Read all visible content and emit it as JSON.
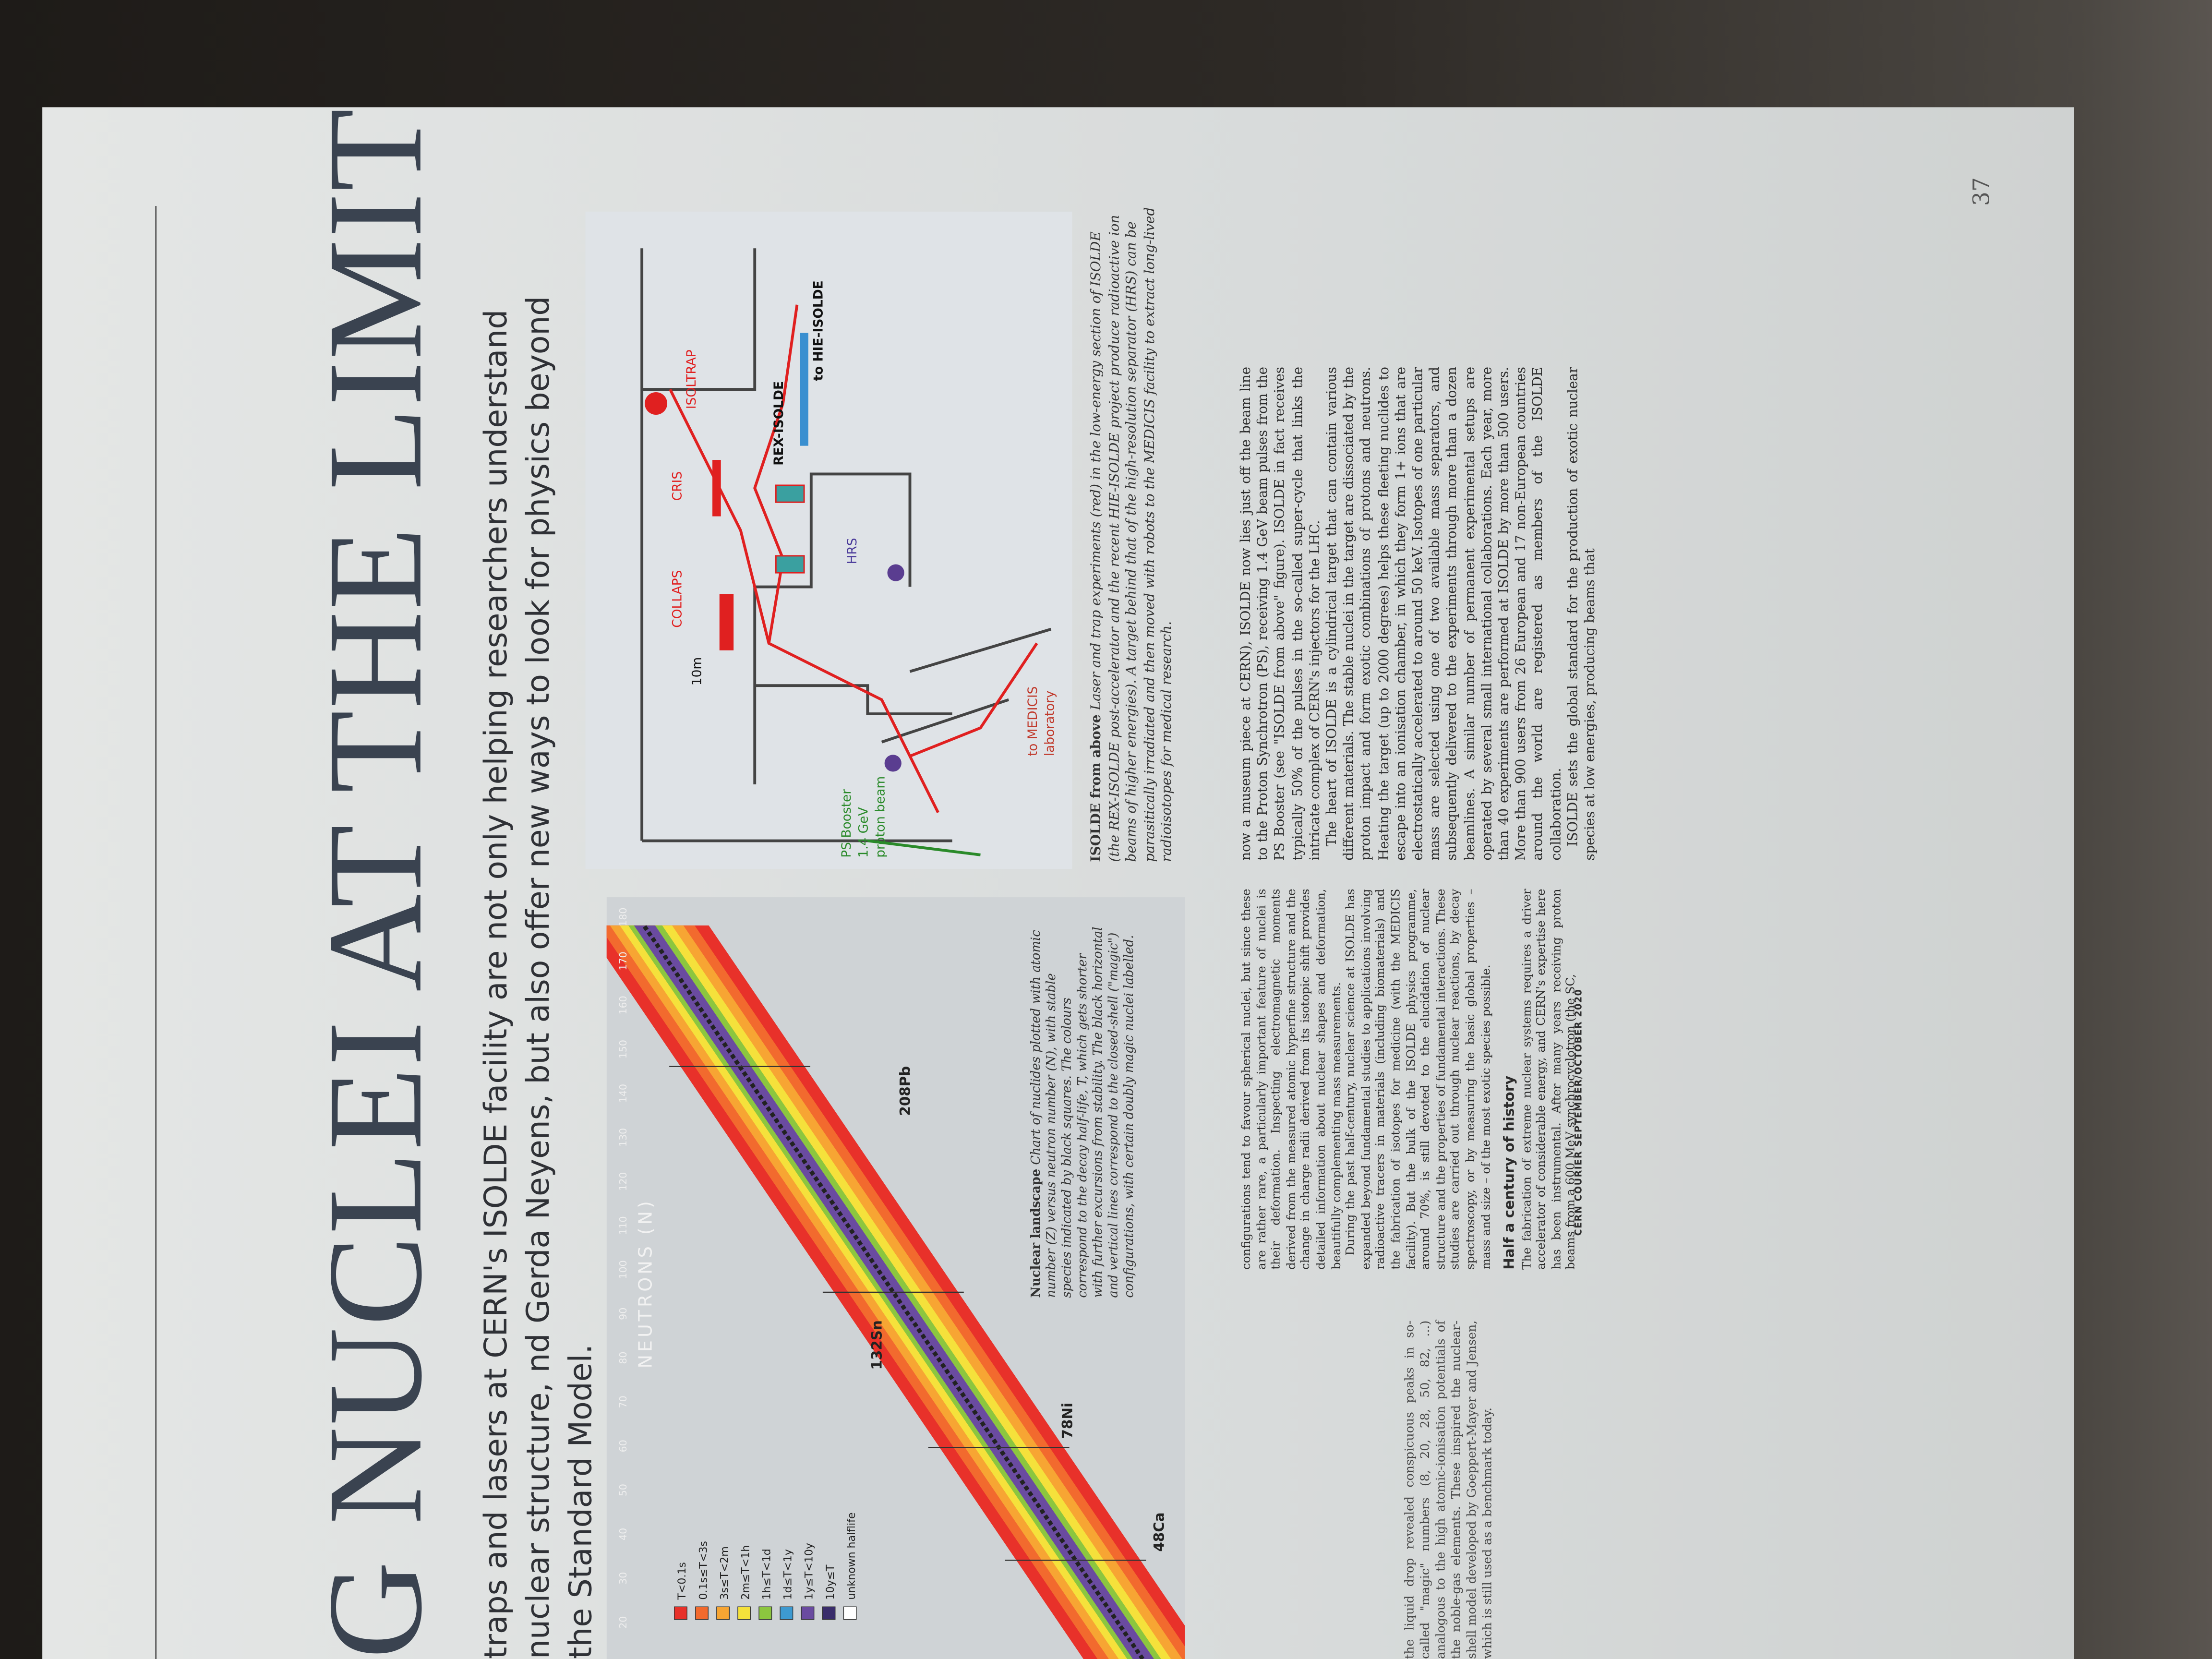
{
  "header": {
    "title": "G NUCLEI AT THE LIMITS",
    "subtitle": "traps and lasers at CERN's ISOLDE facility are not only helping researchers understand nuclear structure, nd Gerda Neyens, but also offer new ways to look for physics beyond the Standard Model."
  },
  "chart_figure": {
    "axis_label": "NEUTRONS (N)",
    "ticks": [
      "20",
      "30",
      "40",
      "50",
      "60",
      "70",
      "80",
      "90",
      "100",
      "110",
      "120",
      "130",
      "140",
      "150",
      "160",
      "170",
      "180"
    ],
    "nuclei": [
      "48Ca",
      "78Ni",
      "132Sn",
      "208Pb"
    ],
    "legend": [
      {
        "label": "T<0.1s",
        "color": "#e8312a"
      },
      {
        "label": "0.1s≤T<3s",
        "color": "#f26a2e"
      },
      {
        "label": "3s≤T<2m",
        "color": "#f7a533"
      },
      {
        "label": "2m≤T<1h",
        "color": "#f5e13b"
      },
      {
        "label": "1h≤T<1d",
        "color": "#8cc63f"
      },
      {
        "label": "1d≤T<1y",
        "color": "#3d9ad1"
      },
      {
        "label": "1y≤T<10y",
        "color": "#6a4ba0"
      },
      {
        "label": "10y≤T",
        "color": "#3a2d6b"
      },
      {
        "label": "unknown halflife",
        "color": "#ffffff"
      }
    ],
    "caption_lead": "Nuclear landscape",
    "caption": "Chart of nuclides plotted with atomic number (Z) versus neutron number (N), with stable species indicated by black squares. The colours correspond to the decay half-life, T, which gets shorter with further excursions from stability. The black horizontal and vertical lines correspond to the closed-shell (\"magic\") configurations, with certain doubly magic nuclei labelled."
  },
  "map_figure": {
    "labels": [
      "COLLAPS",
      "CRIS",
      "ISOLTRAP",
      "REX-ISOLDE",
      "to HIE-ISOLDE",
      "HRS",
      "10m",
      "PS Booster",
      "1.4 GeV",
      "proton beam",
      "to MEDICIS",
      "laboratory"
    ],
    "caption_lead": "ISOLDE from above",
    "caption": "Laser and trap experiments (red) in the low-energy section of ISOLDE (the REX-ISOLDE post-accelerator and the recent HIE-ISOLDE project produce radioactive ion beams of higher energies). A target behind that of the high-resolution separator (HRS) can be parasitically irradiated and then moved with robots to the MEDICIS facility to extract long-lived radioisotopes for medical research."
  },
  "left_column": {
    "paragraphs": [
      "configurations tend to favour spherical nuclei, but since these are rather rare, a particularly important feature of nuclei is their deformation. Inspecting electromagnetic moments derived from the measured atomic hyperfine structure and the change in charge radii derived from its isotopic shift provides detailed information about nuclear shapes and deformation, beautifully complementing mass measurements.",
      "During the past half-century, nuclear science at ISOLDE has expanded beyond fundamental studies to applications involving radioactive tracers in materials (including biomaterials) and the fabrication of isotopes for medicine (with the MEDICIS facility). But the bulk of the ISOLDE physics programme, around 70%, is still devoted to the elucidation of nuclear structure and the properties of fundamental interactions. These studies are carried out through nuclear reactions, by decay spectroscopy, or by measuring the basic global properties – mass and size – of the most exotic species possible."
    ],
    "heading": "Half a century of history",
    "after_heading": "The fabrication of extreme nuclear systems requires a driver accelerator of considerable energy, and CERN's expertise here has been instrumental. After many years receiving proton beams from a 600 MeV synchrocyclotron (the SC,"
  },
  "right_column": {
    "paragraphs": [
      "now a museum piece at CERN), ISOLDE now lies just off the beam line to the Proton Synchrotron (PS), receiving 1.4 GeV beam pulses from the PS Booster (see \"ISOLDE from above\" figure). ISOLDE in fact receives typically 50% of the pulses in the so-called super-cycle that links the intricate complex of CERN's injectors for the LHC.",
      "The heart of ISOLDE is a cylindrical target that can contain various different materials. The stable nuclei in the target are dissociated by the proton impact and form exotic combinations of protons and neutrons. Heating the target (up to 2000 degrees) helps these fleeting nuclides to escape into an ionisation chamber, in which they form 1+ ions that are electrostatically accelerated to around 50 keV. Isotopes of one particular mass are selected using one of two available mass separators, and subsequently delivered to the experiments through more than a dozen beamlines. A similar number of permanent experimental setups are operated by several small international collaborations. Each year, more than 40 experiments are performed at ISOLDE by more than 500 users. More than 900 users from 26 European and 17 non-European countries around the world are registered as members of the ISOLDE collaboration.",
      "ISOLDE sets the global standard for the production of exotic nuclear species at low energies, producing beams that"
    ]
  },
  "facing_column": {
    "text": "the liquid drop revealed conspicuous peaks in so-called \"magic\" numbers (8, 20, 28, 50, 82, ...) analogous to the high atomic-ionisation potentials of the noble-gas elements. These inspired the nuclear-shell model developed by Goeppert-Mayer and Jensen, which is still used as a benchmark today."
  },
  "footer": {
    "magazine": "CERN COURIER",
    "issue": "SEPTEMBER/OCTOBER 2020",
    "page_number": "37"
  }
}
